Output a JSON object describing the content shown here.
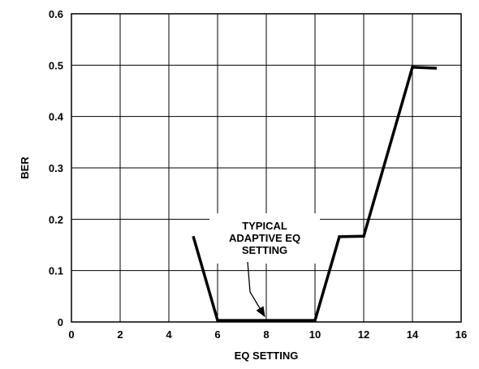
{
  "chart_data": {
    "type": "line",
    "xlabel": "EQ SETTING",
    "ylabel": "BER",
    "xlim": [
      0,
      16
    ],
    "ylim": [
      0,
      0.6
    ],
    "x_ticks": [
      "0",
      "2",
      "4",
      "6",
      "8",
      "10",
      "12",
      "14",
      "16"
    ],
    "y_ticks": [
      "0",
      "0.1",
      "0.2",
      "0.3",
      "0.4",
      "0.5",
      "0.6"
    ],
    "grid": true,
    "series": [
      {
        "x": [
          5,
          6,
          10,
          11,
          12,
          14,
          15
        ],
        "y": [
          0.167,
          0.003,
          0.003,
          0.166,
          0.167,
          0.496,
          0.494
        ]
      }
    ],
    "annotation": {
      "lines": [
        "TYPICAL",
        "ADAPTIVE EQ",
        "SETTING"
      ],
      "arrow_target": {
        "x": 8,
        "y": 0.003
      }
    }
  }
}
